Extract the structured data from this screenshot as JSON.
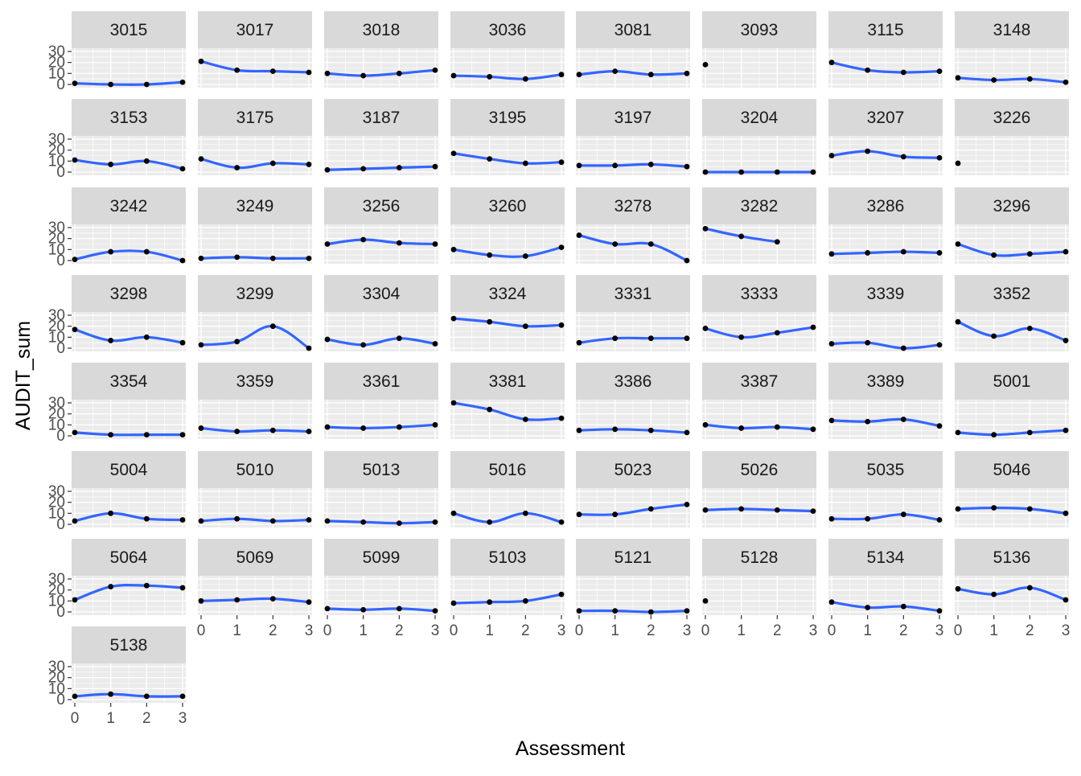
{
  "chart_data": {
    "type": "line",
    "facet_type": "facet_wrap",
    "ncol": 8,
    "xlabel": "Assessment",
    "ylabel": "AUDIT_sum",
    "x_ticks": [
      0,
      1,
      2,
      3
    ],
    "y_ticks": [
      0,
      10,
      20,
      30
    ],
    "xlim": [
      0,
      3
    ],
    "ylim": [
      0,
      30
    ],
    "grid": true,
    "colors": {
      "panel_bg": "#ebebeb",
      "strip_bg": "#d9d9d9",
      "line": "#3366ff",
      "point": "#000000",
      "grid": "#ffffff"
    },
    "panels": [
      {
        "id": "3015",
        "values": [
          1,
          0,
          0,
          2
        ]
      },
      {
        "id": "3017",
        "values": [
          21,
          13,
          12,
          11
        ]
      },
      {
        "id": "3018",
        "values": [
          10,
          8,
          10,
          13
        ]
      },
      {
        "id": "3036",
        "values": [
          8,
          7,
          5,
          9
        ]
      },
      {
        "id": "3081",
        "values": [
          9,
          12,
          9,
          10
        ]
      },
      {
        "id": "3093",
        "values": [
          18
        ]
      },
      {
        "id": "3115",
        "values": [
          20,
          13,
          11,
          12
        ]
      },
      {
        "id": "3148",
        "values": [
          6,
          4,
          5,
          2
        ]
      },
      {
        "id": "3153",
        "values": [
          11,
          7,
          10,
          3
        ]
      },
      {
        "id": "3175",
        "values": [
          12,
          4,
          8,
          7
        ]
      },
      {
        "id": "3187",
        "values": [
          2,
          3,
          4,
          5
        ]
      },
      {
        "id": "3195",
        "values": [
          17,
          12,
          8,
          9
        ]
      },
      {
        "id": "3197",
        "values": [
          6,
          6,
          7,
          5
        ]
      },
      {
        "id": "3204",
        "values": [
          0,
          0,
          0,
          0
        ]
      },
      {
        "id": "3207",
        "values": [
          15,
          19,
          14,
          13
        ]
      },
      {
        "id": "3226",
        "values": [
          8
        ]
      },
      {
        "id": "3242",
        "values": [
          1,
          8,
          8,
          0
        ]
      },
      {
        "id": "3249",
        "values": [
          2,
          3,
          2,
          2
        ]
      },
      {
        "id": "3256",
        "values": [
          15,
          19,
          16,
          15
        ]
      },
      {
        "id": "3260",
        "values": [
          10,
          5,
          4,
          12
        ]
      },
      {
        "id": "3278",
        "values": [
          23,
          15,
          15,
          0
        ]
      },
      {
        "id": "3282",
        "values": [
          29,
          22,
          17
        ]
      },
      {
        "id": "3286",
        "values": [
          6,
          7,
          8,
          7
        ]
      },
      {
        "id": "3296",
        "values": [
          15,
          5,
          6,
          8
        ]
      },
      {
        "id": "3298",
        "values": [
          17,
          7,
          10,
          5
        ]
      },
      {
        "id": "3299",
        "values": [
          3,
          6,
          20,
          0
        ]
      },
      {
        "id": "3304",
        "values": [
          8,
          3,
          9,
          4
        ]
      },
      {
        "id": "3324",
        "values": [
          27,
          24,
          20,
          21
        ]
      },
      {
        "id": "3331",
        "values": [
          5,
          9,
          9,
          9
        ]
      },
      {
        "id": "3333",
        "values": [
          18,
          10,
          14,
          19
        ]
      },
      {
        "id": "3339",
        "values": [
          4,
          5,
          0,
          3
        ]
      },
      {
        "id": "3352",
        "values": [
          24,
          11,
          18,
          7
        ]
      },
      {
        "id": "3354",
        "values": [
          3,
          1,
          1,
          1
        ]
      },
      {
        "id": "3359",
        "values": [
          7,
          4,
          5,
          4
        ]
      },
      {
        "id": "3361",
        "values": [
          8,
          7,
          8,
          10
        ]
      },
      {
        "id": "3381",
        "values": [
          30,
          24,
          15,
          16
        ]
      },
      {
        "id": "3386",
        "values": [
          5,
          6,
          5,
          3
        ]
      },
      {
        "id": "3387",
        "values": [
          10,
          7,
          8,
          6
        ]
      },
      {
        "id": "3389",
        "values": [
          14,
          13,
          15,
          9
        ]
      },
      {
        "id": "5001",
        "values": [
          3,
          1,
          3,
          5
        ]
      },
      {
        "id": "5004",
        "values": [
          3,
          10,
          5,
          4
        ]
      },
      {
        "id": "5010",
        "values": [
          3,
          5,
          3,
          4
        ]
      },
      {
        "id": "5013",
        "values": [
          3,
          2,
          1,
          2
        ]
      },
      {
        "id": "5016",
        "values": [
          10,
          2,
          10,
          2
        ]
      },
      {
        "id": "5023",
        "values": [
          9,
          9,
          14,
          18
        ]
      },
      {
        "id": "5026",
        "values": [
          13,
          14,
          13,
          12
        ]
      },
      {
        "id": "5035",
        "values": [
          5,
          5,
          9,
          4
        ]
      },
      {
        "id": "5046",
        "values": [
          14,
          15,
          14,
          10
        ]
      },
      {
        "id": "5064",
        "values": [
          11,
          23,
          24,
          22
        ]
      },
      {
        "id": "5069",
        "values": [
          10,
          11,
          12,
          9
        ]
      },
      {
        "id": "5099",
        "values": [
          3,
          2,
          3,
          1
        ]
      },
      {
        "id": "5103",
        "values": [
          8,
          9,
          10,
          16
        ]
      },
      {
        "id": "5121",
        "values": [
          1,
          1,
          0,
          1
        ]
      },
      {
        "id": "5128",
        "values": [
          10
        ]
      },
      {
        "id": "5134",
        "values": [
          9,
          4,
          5,
          1
        ]
      },
      {
        "id": "5136",
        "values": [
          21,
          16,
          22,
          11
        ]
      },
      {
        "id": "5138",
        "values": [
          3,
          5,
          3,
          3
        ]
      }
    ]
  }
}
